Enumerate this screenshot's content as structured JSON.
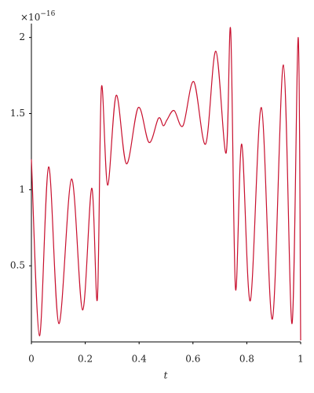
{
  "chart_data": {
    "type": "line",
    "x_label": "t",
    "y_multiplier": "×10",
    "y_exponent": "−16",
    "color": "#c8102e",
    "x": [
      0,
      0.03,
      0.064,
      0.102,
      0.149,
      0.19,
      0.224,
      0.245,
      0.26,
      0.283,
      0.315,
      0.353,
      0.397,
      0.437,
      0.472,
      0.49,
      0.504,
      0.53,
      0.563,
      0.603,
      0.647,
      0.685,
      0.723,
      0.74,
      0.758,
      0.781,
      0.813,
      0.854,
      0.895,
      0.936,
      0.968,
      0.991,
      1
    ],
    "values": [
      1.2,
      0.04,
      1.15,
      0.12,
      1.07,
      0.21,
      1.01,
      0.28,
      1.67,
      1.03,
      1.62,
      1.17,
      1.54,
      1.31,
      1.47,
      1.42,
      1.46,
      1.52,
      1.42,
      1.71,
      1.3,
      1.91,
      1.24,
      2.05,
      0.35,
      1.3,
      0.27,
      1.54,
      0.15,
      1.82,
      0.12,
      2.0,
      0.01
    ],
    "xlim": [
      0,
      1
    ],
    "ylim": [
      0,
      2.05
    ],
    "xticks": [
      0,
      0.2,
      0.4,
      0.6,
      0.8,
      1
    ],
    "yticks": [
      0.5,
      1,
      1.5,
      2
    ]
  }
}
